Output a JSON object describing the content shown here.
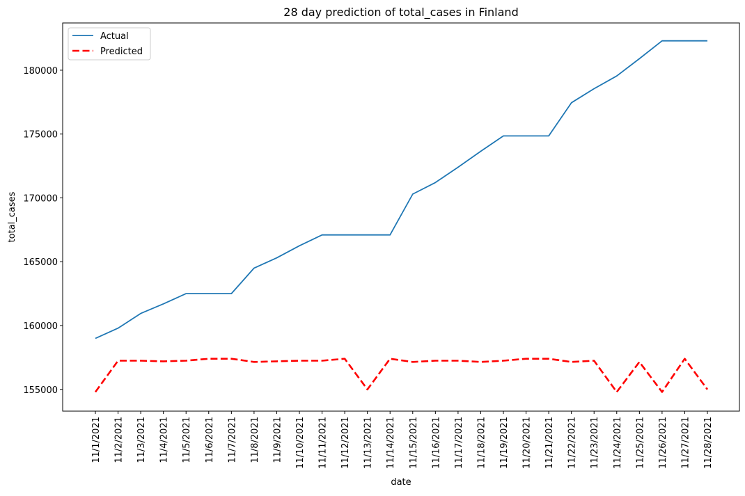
{
  "chart_data": {
    "type": "line",
    "title": "28 day prediction of total_cases in Finland",
    "xlabel": "date",
    "ylabel": "total_cases",
    "categories": [
      "11/1/2021",
      "11/2/2021",
      "11/3/2021",
      "11/4/2021",
      "11/5/2021",
      "11/6/2021",
      "11/7/2021",
      "11/8/2021",
      "11/9/2021",
      "11/10/2021",
      "11/11/2021",
      "11/12/2021",
      "11/13/2021",
      "11/14/2021",
      "11/15/2021",
      "11/16/2021",
      "11/17/2021",
      "11/18/2021",
      "11/19/2021",
      "11/20/2021",
      "11/21/2021",
      "11/22/2021",
      "11/23/2021",
      "11/24/2021",
      "11/25/2021",
      "11/26/2021",
      "11/27/2021",
      "11/28/2021"
    ],
    "yticks": [
      155000,
      160000,
      165000,
      170000,
      175000,
      180000
    ],
    "ylim": [
      153300,
      183700
    ],
    "grid": false,
    "legend_position": "top-left",
    "series": [
      {
        "name": "Actual",
        "color": "#1f77b4",
        "style": "solid",
        "values": [
          159000,
          159800,
          160950,
          161700,
          162500,
          162500,
          162500,
          164500,
          165300,
          166250,
          167100,
          167100,
          167100,
          167100,
          170300,
          171200,
          172400,
          173650,
          174850,
          174850,
          174850,
          177450,
          178550,
          179550,
          180900,
          182300,
          182300,
          182300
        ]
      },
      {
        "name": "Predicted",
        "color": "#ff0000",
        "style": "dashed",
        "values": [
          154800,
          157250,
          157250,
          157200,
          157250,
          157400,
          157400,
          157150,
          157200,
          157250,
          157250,
          157400,
          155000,
          157400,
          157150,
          157250,
          157250,
          157150,
          157250,
          157400,
          157400,
          157150,
          157250,
          154800,
          157150,
          154800,
          157400,
          155000
        ]
      }
    ]
  }
}
